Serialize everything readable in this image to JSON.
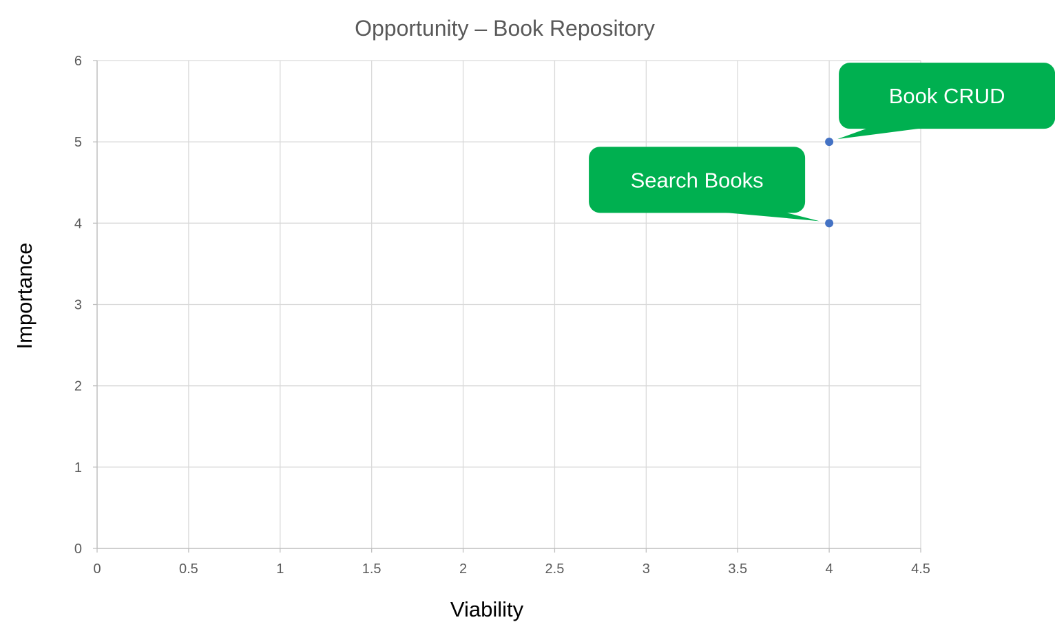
{
  "chart_data": {
    "type": "scatter",
    "title": "Opportunity – Book Repository",
    "xlabel": "Viability",
    "ylabel": "Importance",
    "xlim": [
      0,
      4.5
    ],
    "ylim": [
      0,
      6
    ],
    "x_ticks": [
      0,
      0.5,
      1,
      1.5,
      2,
      2.5,
      3,
      3.5,
      4,
      4.5
    ],
    "y_ticks": [
      0,
      1,
      2,
      3,
      4,
      5,
      6
    ],
    "x_tick_labels": [
      "0",
      "0.5",
      "1",
      "1.5",
      "2",
      "2.5",
      "3",
      "3.5",
      "4",
      "4.5"
    ],
    "y_tick_labels": [
      "0",
      "1",
      "2",
      "3",
      "4",
      "5",
      "6"
    ],
    "grid": true,
    "legend": false,
    "series": [
      {
        "points": [
          {
            "x": 4,
            "y": 5,
            "label": "Book CRUD"
          },
          {
            "x": 4,
            "y": 4,
            "label": "Search Books"
          }
        ]
      }
    ],
    "colors": {
      "point": "#4472C4",
      "callout_fill": "#00B050",
      "callout_text": "#ffffff",
      "grid": "#d9d9d9",
      "axis": "#bfbfbf",
      "title": "#595959",
      "tick_text": "#595959",
      "axis_title": "#000000"
    }
  }
}
